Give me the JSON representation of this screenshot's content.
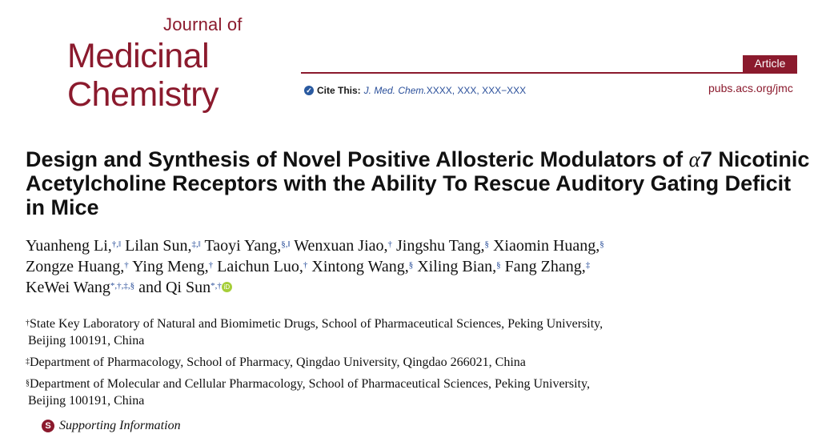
{
  "journal": {
    "line1": "Journal of",
    "line2": "Medicinal",
    "line3": "Chemistry",
    "url": "pubs.acs.org/jmc",
    "article_type": "Article"
  },
  "cite": {
    "label": "Cite This:",
    "reference_italic": "J. Med. Chem.",
    "reference_rest": " XXXX, XXX, XXX−XXX"
  },
  "title": {
    "prefix": "Design and Synthesis of Novel Positive Allosteric Modulators of ",
    "alpha": "α",
    "rest": "7 Nicotinic Acetylcholine Receptors with the Ability To Rescue Auditory Gating Deficit in Mice"
  },
  "authors": [
    {
      "name": "Yuanheng Li,",
      "sup": "†,‖"
    },
    {
      "name": "Lilan Sun,",
      "sup": "‡,‖"
    },
    {
      "name": "Taoyi Yang,",
      "sup": "§,‖"
    },
    {
      "name": "Wenxuan Jiao,",
      "sup": "†"
    },
    {
      "name": "Jingshu Tang,",
      "sup": "§"
    },
    {
      "name": "Xiaomin Huang,",
      "sup": "§"
    },
    {
      "name": "Zongze Huang,",
      "sup": "†"
    },
    {
      "name": "Ying Meng,",
      "sup": "†"
    },
    {
      "name": "Laichun Luo,",
      "sup": "†"
    },
    {
      "name": "Xintong Wang,",
      "sup": "§"
    },
    {
      "name": "Xiling Bian,",
      "sup": "§"
    },
    {
      "name": "Fang Zhang,",
      "sup": "‡"
    },
    {
      "name": "KeWei Wang",
      "sup": "*,†,‡,§"
    },
    {
      "name": "and Qi Sun",
      "sup": "*,†"
    }
  ],
  "affiliations": [
    {
      "mark": "†",
      "line1": "State Key Laboratory of Natural and Biomimetic Drugs, School of Pharmaceutical Sciences, Peking University,",
      "line2": "Beijing 100191, China"
    },
    {
      "mark": "‡",
      "line1": "Department of Pharmacology, School of Pharmacy, Qingdao University, Qingdao 266021, China",
      "line2": ""
    },
    {
      "mark": "§",
      "line1": "Department of Molecular and Cellular Pharmacology, School of Pharmaceutical Sciences, Peking University,",
      "line2": "Beijing 100191, China"
    }
  ],
  "supporting_info": {
    "icon_letter": "S",
    "label": "Supporting Information"
  },
  "icons": {
    "cite": "check-circle-icon",
    "orcid": "orcid-icon",
    "supporting": "supporting-info-icon"
  },
  "colors": {
    "brand": "#8b1a2d",
    "link": "#2a4f9a",
    "orcid": "#a6ce39"
  }
}
